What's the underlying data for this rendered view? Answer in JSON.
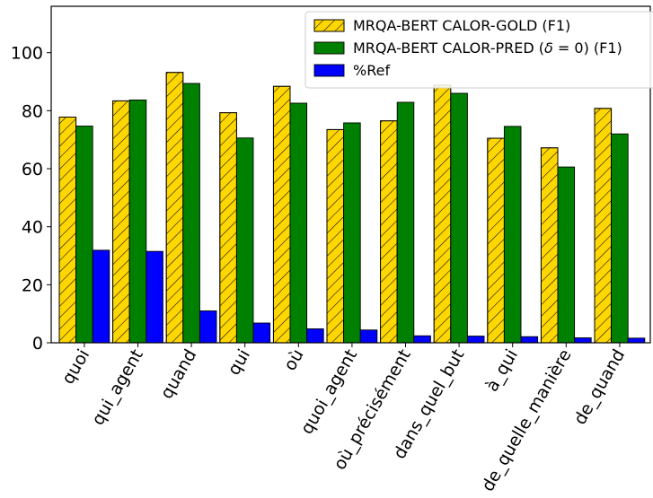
{
  "chart_data": {
    "type": "bar",
    "title": "",
    "xlabel": "",
    "ylabel": "",
    "categories": [
      "quoi",
      "qui_agent",
      "quand",
      "qui",
      "où",
      "quoi_agent",
      "où_précisément",
      "dans_quel_but",
      "à_qui",
      "de_quelle_manière",
      "de_quand"
    ],
    "series": [
      {
        "name": "MRQA-BERT CALOR-GOLD (F1)",
        "color": "#ffd700",
        "hatch": true,
        "values": [
          77.8,
          83.4,
          93.2,
          79.3,
          88.4,
          73.5,
          76.5,
          88.8,
          70.5,
          67.2,
          80.8
        ]
      },
      {
        "name": "MRQA-BERT CALOR-PRED (δ = 0) (F1)",
        "name_parts": [
          "MRQA-BERT CALOR-PRED (",
          "δ",
          " = 0) (F1)"
        ],
        "color": "#008000",
        "hatch": false,
        "values": [
          74.7,
          83.7,
          89.4,
          70.6,
          82.6,
          75.8,
          82.9,
          86.0,
          74.6,
          60.6,
          72.0
        ]
      },
      {
        "name": "%Ref",
        "color": "#0000ff",
        "hatch": false,
        "values": [
          31.9,
          31.5,
          11.0,
          6.8,
          4.8,
          4.4,
          2.4,
          2.3,
          2.1,
          1.7,
          1.6
        ]
      }
    ],
    "ylim": [
      0,
      116
    ],
    "yticks": [
      0,
      20,
      40,
      60,
      80,
      100
    ],
    "grid": false,
    "legend_position": "top-right"
  }
}
